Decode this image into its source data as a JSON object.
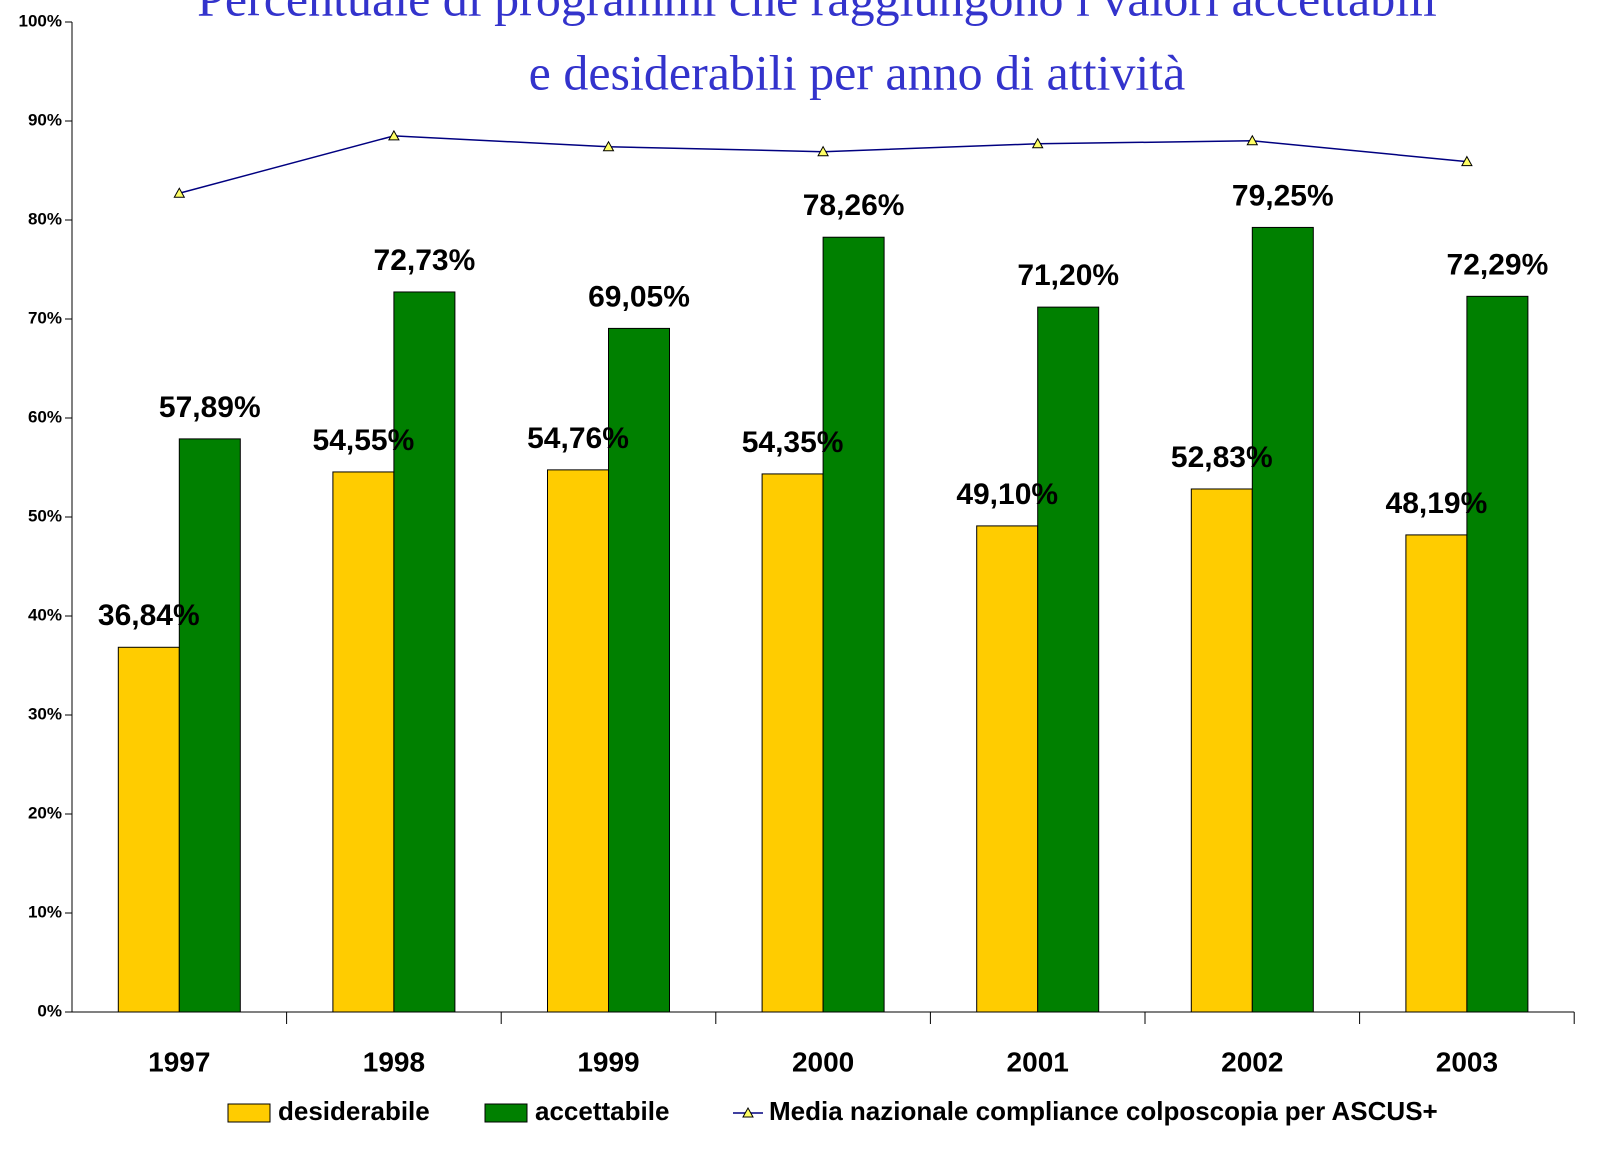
{
  "chart_data": {
    "type": "bar",
    "title": [
      "Percentuale di programmi che raggiungono i valori accettabili",
      "e desiderabili per anno di attività"
    ],
    "categories": [
      "1997",
      "1998",
      "1999",
      "2000",
      "2001",
      "2002",
      "2003"
    ],
    "series": [
      {
        "name": "desiderabile",
        "color": "#ffcc00",
        "values": [
          36.84,
          54.55,
          54.76,
          54.35,
          49.1,
          52.83,
          48.19
        ],
        "value_labels": [
          "36,84%",
          "54,55%",
          "54,76%",
          "54,35%",
          "49,10%",
          "52,83%",
          "48,19%"
        ]
      },
      {
        "name": "accettabile",
        "color": "#008000",
        "values": [
          57.89,
          72.73,
          69.05,
          78.26,
          71.2,
          79.25,
          72.29
        ],
        "value_labels": [
          "57,89%",
          "72,73%",
          "69,05%",
          "78,26%",
          "71,20%",
          "79,25%",
          "72,29%"
        ]
      },
      {
        "name": "Media nazionale compliance colposcopia per ASCUS+",
        "type": "line",
        "color": "#000080",
        "marker_color": "#ffff66",
        "values": [
          82.7,
          88.5,
          87.4,
          86.9,
          87.7,
          88.0,
          85.9
        ]
      }
    ],
    "ylim": [
      0,
      100
    ],
    "yticks": [
      {
        "value": 0,
        "label": "0%"
      },
      {
        "value": 10,
        "label": "10%"
      },
      {
        "value": 20,
        "label": "20%"
      },
      {
        "value": 30,
        "label": "30%"
      },
      {
        "value": 40,
        "label": "40%"
      },
      {
        "value": 50,
        "label": "50%"
      },
      {
        "value": 60,
        "label": "60%"
      },
      {
        "value": 70,
        "label": "70%"
      },
      {
        "value": 80,
        "label": "80%"
      },
      {
        "value": 90,
        "label": "90%"
      },
      {
        "value": 100,
        "label": "100%"
      }
    ],
    "legend": "bottom"
  }
}
